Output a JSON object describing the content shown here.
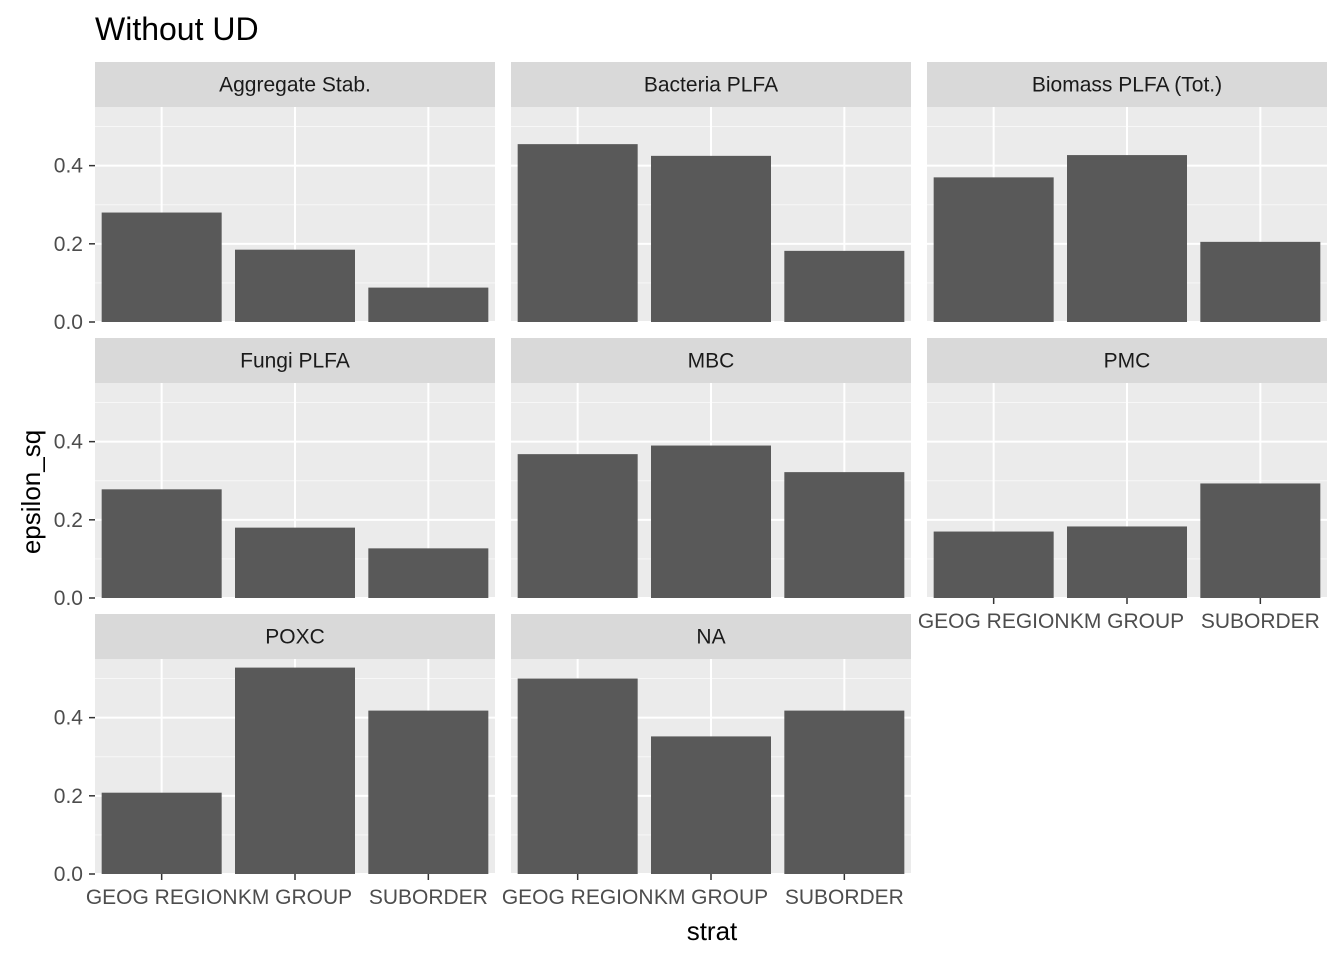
{
  "chart_data": {
    "type": "bar",
    "title": "Without UD",
    "xlabel": "strat",
    "ylabel": "epsilon_sq",
    "categories": [
      "GEOG REGION",
      "KM GROUP",
      "SUBORDER"
    ],
    "ylim": [
      0,
      0.55
    ],
    "yticks": [
      "0.0",
      "0.2",
      "0.4"
    ],
    "grid": true,
    "legend": "none",
    "colors": {
      "bar": "#595959",
      "panel_bg": "#ebebeb",
      "strip_bg": "#d9d9d9",
      "grid": "#ffffff"
    },
    "panels": [
      {
        "label": "Aggregate Stab.",
        "values": [
          0.28,
          0.185,
          0.088
        ]
      },
      {
        "label": "Bacteria PLFA",
        "values": [
          0.455,
          0.425,
          0.182
        ]
      },
      {
        "label": "Biomass PLFA (Tot.)",
        "values": [
          0.37,
          0.427,
          0.205
        ]
      },
      {
        "label": "Fungi PLFA",
        "values": [
          0.278,
          0.18,
          0.127
        ]
      },
      {
        "label": "MBC",
        "values": [
          0.368,
          0.39,
          0.322
        ]
      },
      {
        "label": "PMC",
        "values": [
          0.17,
          0.183,
          0.293
        ]
      },
      {
        "label": "POXC",
        "values": [
          0.208,
          0.528,
          0.418
        ]
      },
      {
        "label": "NA",
        "values": [
          0.5,
          0.352,
          0.418
        ]
      }
    ]
  }
}
